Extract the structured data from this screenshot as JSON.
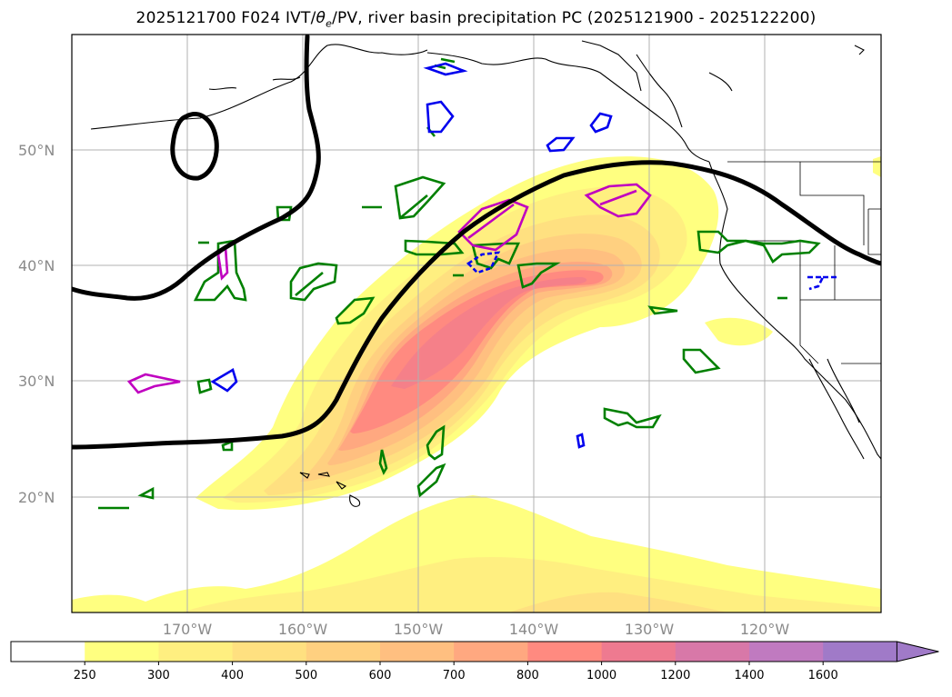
{
  "title": {
    "prefix": "2025121700 F024 IVT/",
    "theta": "θ",
    "theta_sub": "e",
    "suffix": "/PV, river basin precipitation PC (2025121900 - 2025122200)"
  },
  "map": {
    "lat_labels": [
      "50°N",
      "40°N",
      "30°N",
      "20°N"
    ],
    "lon_labels": [
      "170°W",
      "160°W",
      "150°W",
      "140°W",
      "130°W",
      "120°W"
    ],
    "colors": {
      "pv_contour": "#000000",
      "theta_e_green": "#008000",
      "theta_e_blue": "#0000ee",
      "theta_e_magenta": "#c000c0",
      "coastline": "#000000",
      "gridline": "#b0b0b0"
    }
  },
  "colorbar": {
    "levels": [
      "250",
      "300",
      "400",
      "500",
      "600",
      "700",
      "800",
      "1000",
      "1200",
      "1400",
      "1600"
    ],
    "colors": [
      "#ffffff",
      "#ffff80",
      "#ffef80",
      "#ffe080",
      "#ffd080",
      "#ffbf80",
      "#ffa880",
      "#ff8a80",
      "#ee7a90",
      "#d878a8",
      "#c07ac0",
      "#a07ac8"
    ],
    "extend": "max"
  }
}
